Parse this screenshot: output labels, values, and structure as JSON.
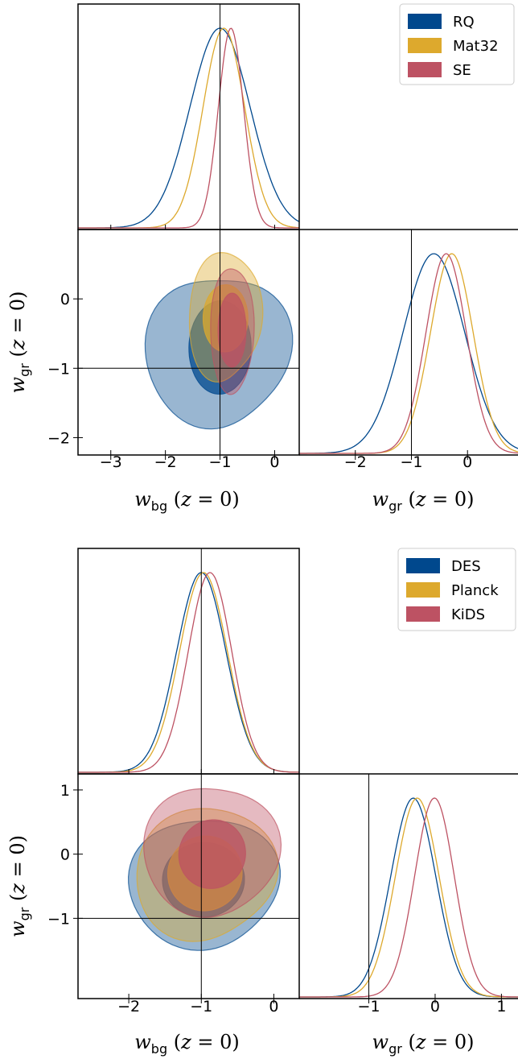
{
  "colors": {
    "blue": "#00488d",
    "gold": "#dda92d",
    "red": "#bd5263"
  },
  "chart_data": [
    {
      "type": "corner-plot",
      "legend": [
        "RQ",
        "Mat32",
        "SE"
      ],
      "legend_location": "top-right",
      "x_params": [
        "w_bg (z = 0)",
        "w_gr (z = 0)"
      ],
      "xlim": [
        -3.6,
        0.45
      ],
      "ylim": [
        -2.25,
        1.0
      ],
      "xlim_gr": [
        -3.0,
        0.9
      ],
      "xticks": [
        "−3",
        "−2",
        "−1",
        "0"
      ],
      "yticks": [
        "0",
        "−1",
        "−2"
      ],
      "xticks_gr": [
        "−2",
        "−1",
        "0"
      ],
      "reference": {
        "w_bg": -1,
        "w_gr": -1
      },
      "series": [
        {
          "name": "RQ",
          "w_bg_mean": -1.0,
          "w_bg_sigma": 0.55,
          "w_gr_mean": -0.6,
          "w_gr_sigma": 0.55
        },
        {
          "name": "Mat32",
          "w_bg_mean": -0.93,
          "w_bg_sigma": 0.38,
          "w_gr_mean": -0.28,
          "w_gr_sigma": 0.38
        },
        {
          "name": "SE",
          "w_bg_mean": -0.8,
          "w_bg_sigma": 0.23,
          "w_gr_mean": -0.38,
          "w_gr_sigma": 0.36
        }
      ]
    },
    {
      "type": "corner-plot",
      "legend": [
        "DES",
        "Planck",
        "KiDS"
      ],
      "legend_location": "top-right",
      "x_params": [
        "w_bg (z = 0)",
        "w_gr (z = 0)"
      ],
      "xlim": [
        -2.7,
        0.35
      ],
      "ylim": [
        -2.25,
        1.25
      ],
      "xlim_gr": [
        -2.05,
        1.25
      ],
      "xticks": [
        "−2",
        "−1",
        "0"
      ],
      "yticks": [
        "1",
        "0",
        "−1"
      ],
      "xticks_gr": [
        "−1",
        "0",
        "1"
      ],
      "reference": {
        "w_bg": -1,
        "w_gr": -1
      },
      "series": [
        {
          "name": "DES",
          "w_bg_mean": -1.0,
          "w_bg_sigma": 0.34,
          "w_gr_mean": -0.33,
          "w_gr_sigma": 0.34
        },
        {
          "name": "Planck",
          "w_bg_mean": -0.97,
          "w_bg_sigma": 0.33,
          "w_gr_mean": -0.27,
          "w_gr_sigma": 0.33
        },
        {
          "name": "KiDS",
          "w_bg_mean": -0.88,
          "w_bg_sigma": 0.3,
          "w_gr_mean": -0.01,
          "w_gr_sigma": 0.3
        }
      ]
    }
  ]
}
